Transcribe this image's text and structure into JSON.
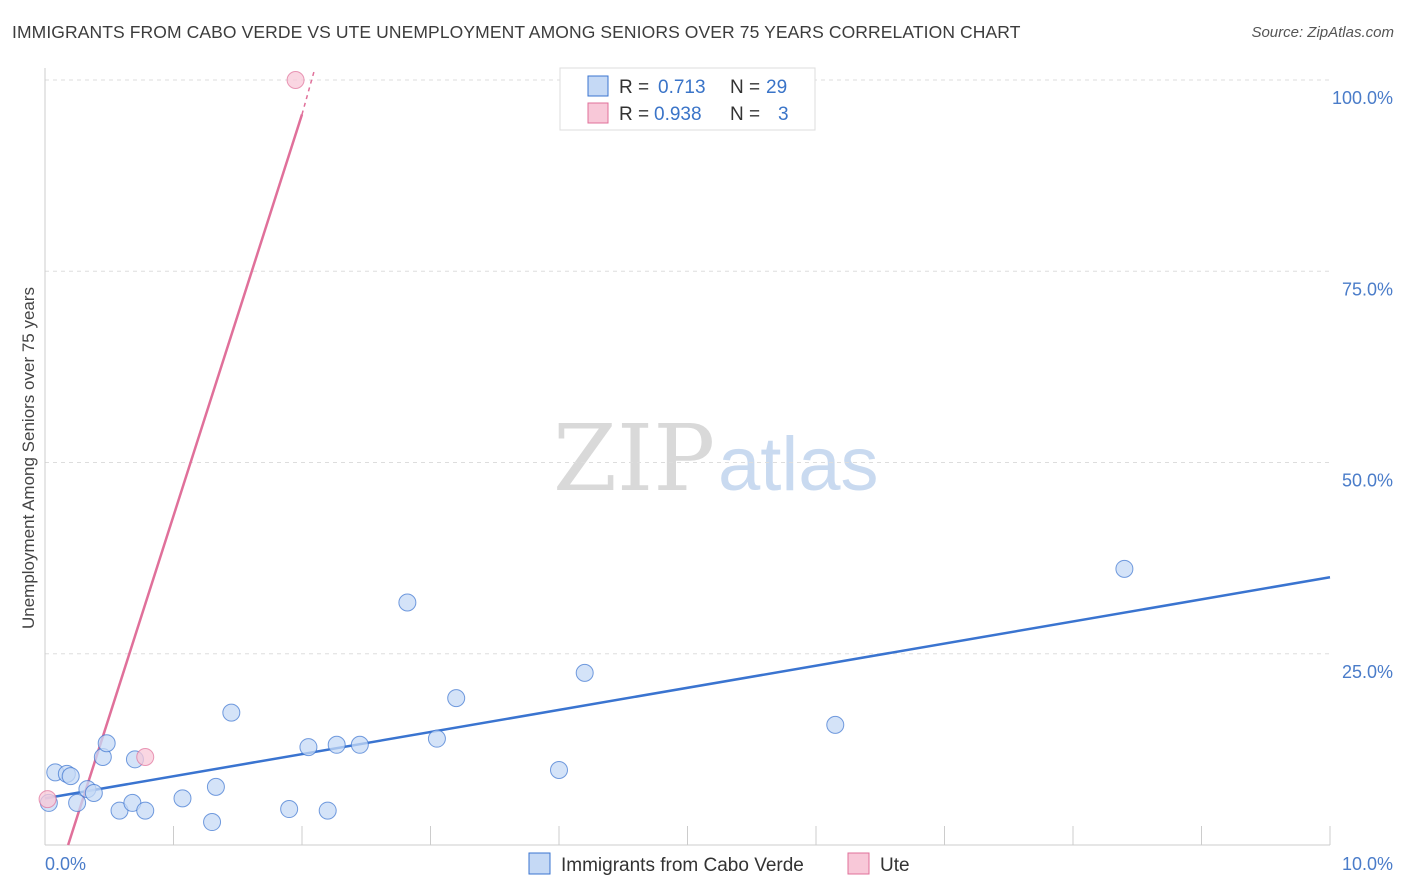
{
  "title": "IMMIGRANTS FROM CABO VERDE VS UTE UNEMPLOYMENT AMONG SENIORS OVER 75 YEARS CORRELATION CHART",
  "source": "Source: ZipAtlas.com",
  "watermark": {
    "zip": "ZIP",
    "atlas": "atlas"
  },
  "colors": {
    "blue": "#3a74d0",
    "blue_fill": "#c5d9f5",
    "pink": "#e0709a",
    "pink_fill": "#f8c8d8",
    "tick": "#4a7cc9"
  },
  "chart_data": {
    "type": "scatter",
    "ylabel": "Unemployment Among Seniors over 75 years",
    "xlim": [
      0,
      10
    ],
    "ylim": [
      0,
      100
    ],
    "x_tick_labels": [
      "0.0%",
      "10.0%"
    ],
    "y_ticks": [
      25,
      50,
      75,
      100
    ],
    "y_tick_labels": [
      "25.0%",
      "50.0%",
      "75.0%",
      "100.0%"
    ],
    "legend": [
      {
        "r_label": "R =",
        "r_value": "0.713",
        "n_label": "N =",
        "n_value": "29"
      },
      {
        "r_label": "R =",
        "r_value": "0.938",
        "n_label": "N =",
        "n_value": "3"
      }
    ],
    "series": [
      {
        "name": "Immigrants from Cabo Verde",
        "color": "#3a74d0",
        "points": [
          [
            0.03,
            5.5
          ],
          [
            0.08,
            9.5
          ],
          [
            0.17,
            9.3
          ],
          [
            0.2,
            9.0
          ],
          [
            0.25,
            5.5
          ],
          [
            0.33,
            7.3
          ],
          [
            0.38,
            6.8
          ],
          [
            0.45,
            11.5
          ],
          [
            0.48,
            13.3
          ],
          [
            0.58,
            4.5
          ],
          [
            0.68,
            5.5
          ],
          [
            0.7,
            11.2
          ],
          [
            0.78,
            4.5
          ],
          [
            1.07,
            6.1
          ],
          [
            1.3,
            3.0
          ],
          [
            1.33,
            7.6
          ],
          [
            1.45,
            17.3
          ],
          [
            1.9,
            4.7
          ],
          [
            2.05,
            12.8
          ],
          [
            2.2,
            4.5
          ],
          [
            2.27,
            13.1
          ],
          [
            2.45,
            13.1
          ],
          [
            2.82,
            31.7
          ],
          [
            3.05,
            13.9
          ],
          [
            3.2,
            19.2
          ],
          [
            4.0,
            9.8
          ],
          [
            4.2,
            22.5
          ],
          [
            6.15,
            15.7
          ],
          [
            8.4,
            36.1
          ]
        ],
        "trend": {
          "x": [
            0.0,
            10.0
          ],
          "y": [
            6.1,
            35.0
          ]
        }
      },
      {
        "name": "Ute",
        "color": "#e0709a",
        "points": [
          [
            0.02,
            6.0
          ],
          [
            0.78,
            11.5
          ],
          [
            1.95,
            100.0
          ]
        ],
        "trend": {
          "x": [
            0.18,
            2.0
          ],
          "y": [
            0.0,
            95.5
          ]
        },
        "trend_dashed": {
          "x": [
            2.0,
            2.1
          ],
          "y": [
            95.5,
            101.5
          ]
        }
      }
    ]
  }
}
